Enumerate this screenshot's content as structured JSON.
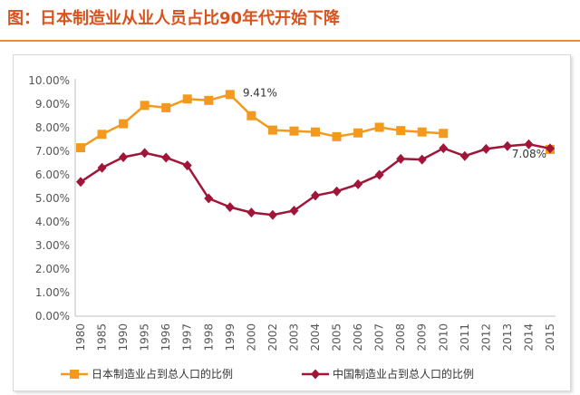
{
  "title": "图：日本制造业从业人员占比90年代开始下降",
  "colors": {
    "title": "#d9531e",
    "accent_rule": "#f08c2e",
    "series1": "#f39a1e",
    "series2": "#a01538"
  },
  "chart_data": {
    "type": "line",
    "categories": [
      "1980",
      "1985",
      "1990",
      "1995",
      "1996",
      "1997",
      "1998",
      "1999",
      "2000",
      "2002",
      "2003",
      "2004",
      "2005",
      "2006",
      "2007",
      "2008",
      "2009",
      "2010",
      "2011",
      "2012",
      "2013",
      "2014",
      "2015"
    ],
    "ylim": [
      0,
      10
    ],
    "yticks": [
      "0.00%",
      "1.00%",
      "2.00%",
      "3.00%",
      "4.00%",
      "5.00%",
      "6.00%",
      "7.00%",
      "8.00%",
      "9.00%",
      "10.00%"
    ],
    "grid": false,
    "legend_position": "bottom",
    "series": [
      {
        "name": "日本制造业占到总人口的比例",
        "marker": "square",
        "values": [
          7.15,
          7.72,
          8.17,
          8.95,
          8.85,
          9.22,
          9.16,
          9.41,
          8.51,
          7.9,
          7.86,
          7.82,
          7.62,
          7.78,
          8.02,
          7.88,
          7.82,
          7.76,
          null,
          null,
          null,
          null,
          7.08
        ]
      },
      {
        "name": "中国制造业占到总人口的比例",
        "marker": "diamond",
        "values": [
          5.7,
          6.3,
          6.75,
          6.93,
          6.73,
          6.4,
          5.0,
          4.63,
          4.4,
          4.3,
          4.48,
          5.12,
          5.3,
          5.6,
          6.0,
          6.68,
          6.65,
          7.13,
          6.8,
          7.1,
          7.22,
          7.3,
          7.12
        ]
      }
    ],
    "annotations": [
      {
        "text": "9.41%",
        "x": "1999",
        "y": 9.41
      },
      {
        "text": "7.08%",
        "x": "2015",
        "y": 7.08
      }
    ]
  }
}
